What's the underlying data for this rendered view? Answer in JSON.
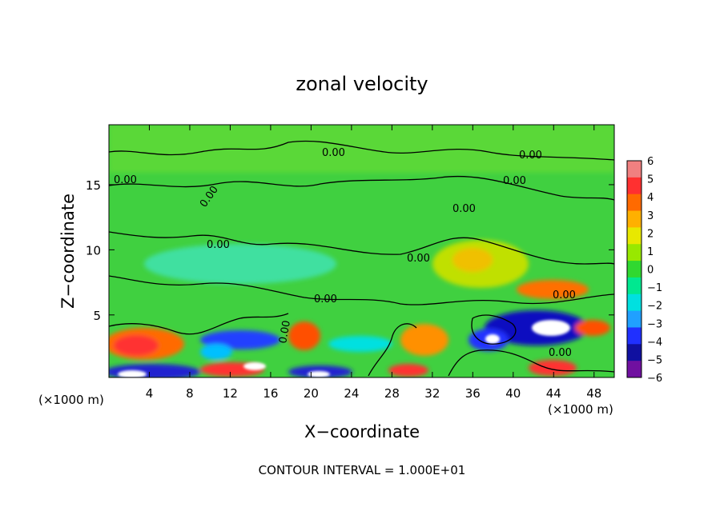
{
  "chart_data": {
    "type": "heatmap",
    "title": "zonal velocity",
    "xlabel": "X−coordinate",
    "ylabel": "Z−coordinate",
    "x_unit_left": "(×1000 m)",
    "x_unit_right": "(×1000 m)",
    "xlim": [
      0,
      50
    ],
    "ylim": [
      0.2,
      19.6
    ],
    "x_ticks": [
      "4",
      "8",
      "12",
      "16",
      "20",
      "24",
      "28",
      "32",
      "36",
      "40",
      "44",
      "48"
    ],
    "y_ticks": [
      "5",
      "10",
      "15"
    ],
    "footer": "CONTOUR INTERVAL = 1.000E+01",
    "contour_label": "0.00",
    "colorbar": {
      "labels": [
        "6",
        "5",
        "4",
        "3",
        "2",
        "1",
        "0",
        "−1",
        "−2",
        "−3",
        "−4",
        "−5",
        "−6"
      ],
      "colors": [
        "#f08080",
        "#ff3030",
        "#ff6a00",
        "#ffb000",
        "#e8e800",
        "#98e800",
        "#30d830",
        "#00e890",
        "#00e0e0",
        "#20a0ff",
        "#2030ff",
        "#1010a0",
        "#7010a0"
      ]
    },
    "grid": false,
    "legend": "colorbar-right"
  }
}
